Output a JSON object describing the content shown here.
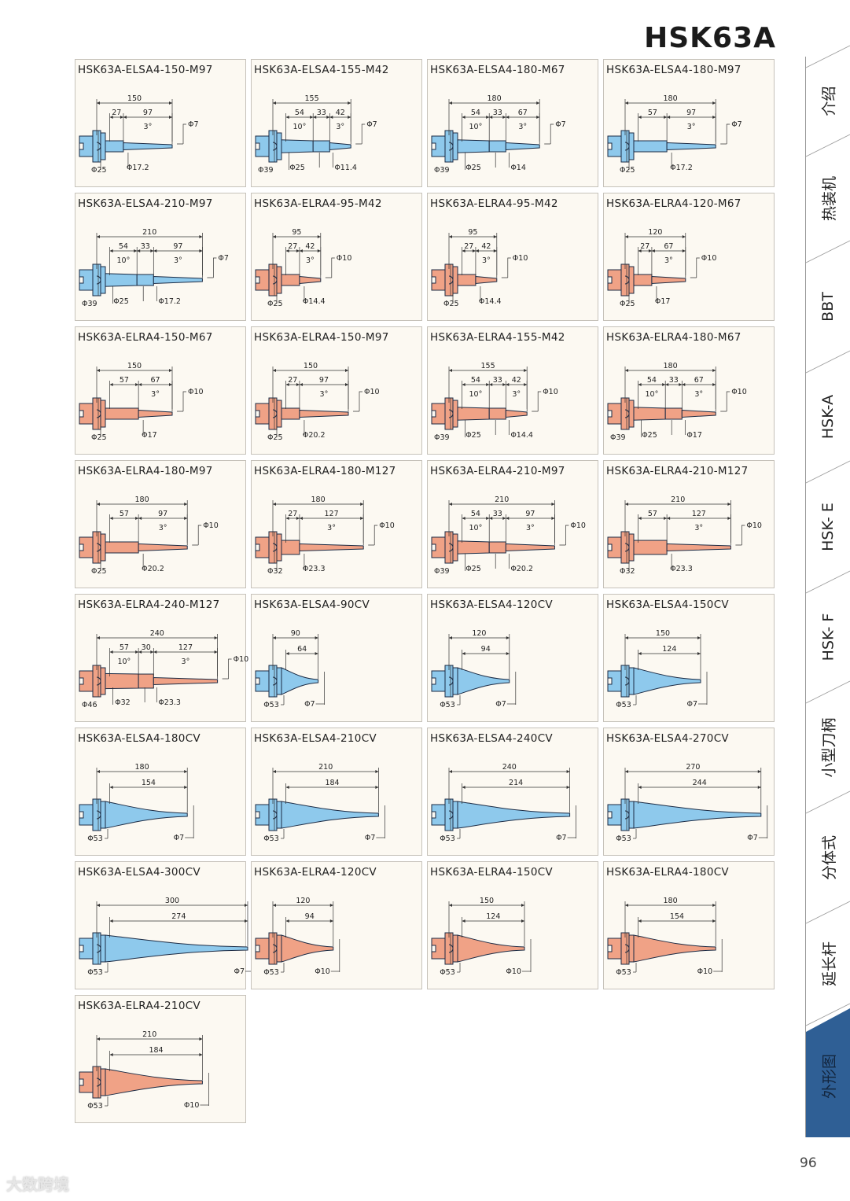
{
  "header": {
    "title": "HSK63A"
  },
  "colors": {
    "elsa": "#8ec9ec",
    "elra": "#f0a286",
    "outline": "#1c2b44",
    "card_bg": "#fcf9f2",
    "active_tab": "#2f5f95"
  },
  "sidebar": {
    "tabs": [
      {
        "label": "介绍"
      },
      {
        "label": "热装机"
      },
      {
        "label": "BBT"
      },
      {
        "label": "HSK-A"
      },
      {
        "label": "HSK- E"
      },
      {
        "label": "HSK- F"
      },
      {
        "label": "小型刀柄"
      },
      {
        "label": "分体式"
      },
      {
        "label": "延长杆"
      },
      {
        "label": "外形图",
        "active": true
      }
    ]
  },
  "page_number": "96",
  "watermark": "大数跨境",
  "cards": [
    {
      "title": "HSK63A-ELSA4-150-M97",
      "series": "elsa",
      "kind": "step",
      "total": "150",
      "segments": [
        "27",
        "97"
      ],
      "angles": [
        "3°"
      ],
      "tip": "Φ7",
      "diameters": [
        "Φ25",
        "Φ17.2"
      ]
    },
    {
      "title": "HSK63A-ELSA4-155-M42",
      "series": "elsa",
      "kind": "step",
      "total": "155",
      "segments": [
        "54",
        "33",
        "42"
      ],
      "angles": [
        "10°",
        "3°"
      ],
      "tip": "Φ7",
      "diameters": [
        "Φ39",
        "Φ25",
        "Φ11.4"
      ]
    },
    {
      "title": "HSK63A-ELSA4-180-M67",
      "series": "elsa",
      "kind": "step",
      "total": "180",
      "segments": [
        "54",
        "33",
        "67"
      ],
      "angles": [
        "10°",
        "3°"
      ],
      "tip": "Φ7",
      "diameters": [
        "Φ39",
        "Φ25",
        "Φ14"
      ]
    },
    {
      "title": "HSK63A-ELSA4-180-M97",
      "series": "elsa",
      "kind": "step",
      "total": "180",
      "segments": [
        "57",
        "97"
      ],
      "angles": [
        "3°"
      ],
      "tip": "Φ7",
      "diameters": [
        "Φ25",
        "Φ17.2"
      ]
    },
    {
      "title": "HSK63A-ELSA4-210-M97",
      "series": "elsa",
      "kind": "step",
      "total": "210",
      "segments": [
        "54",
        "33",
        "97"
      ],
      "angles": [
        "10°",
        "3°"
      ],
      "tip": "Φ7",
      "diameters": [
        "Φ39",
        "Φ25",
        "Φ17.2"
      ]
    },
    {
      "title": "HSK63A-ELRA4-95-M42",
      "series": "elra",
      "kind": "step",
      "total": "95",
      "segments": [
        "27",
        "42"
      ],
      "angles": [
        "3°"
      ],
      "tip": "Φ10",
      "diameters": [
        "Φ25",
        "Φ14.4"
      ]
    },
    {
      "title": "HSK63A-ELRA4-95-M42",
      "series": "elra",
      "kind": "step",
      "total": "95",
      "segments": [
        "27",
        "42"
      ],
      "angles": [
        "3°"
      ],
      "tip": "Φ10",
      "diameters": [
        "Φ25",
        "Φ14.4"
      ]
    },
    {
      "title": "HSK63A-ELRA4-120-M67",
      "series": "elra",
      "kind": "step",
      "total": "120",
      "segments": [
        "27",
        "67"
      ],
      "angles": [
        "3°"
      ],
      "tip": "Φ10",
      "diameters": [
        "Φ25",
        "Φ17"
      ]
    },
    {
      "title": "HSK63A-ELRA4-150-M67",
      "series": "elra",
      "kind": "step",
      "total": "150",
      "segments": [
        "57",
        "67"
      ],
      "angles": [
        "3°"
      ],
      "tip": "Φ10",
      "diameters": [
        "Φ25",
        "Φ17"
      ]
    },
    {
      "title": "HSK63A-ELRA4-150-M97",
      "series": "elra",
      "kind": "step",
      "total": "150",
      "segments": [
        "27",
        "97"
      ],
      "angles": [
        "3°"
      ],
      "tip": "Φ10",
      "diameters": [
        "Φ25",
        "Φ20.2"
      ]
    },
    {
      "title": "HSK63A-ELRA4-155-M42",
      "series": "elra",
      "kind": "step",
      "total": "155",
      "segments": [
        "54",
        "33",
        "42"
      ],
      "angles": [
        "10°",
        "3°"
      ],
      "tip": "Φ10",
      "diameters": [
        "Φ39",
        "Φ25",
        "Φ14.4"
      ]
    },
    {
      "title": "HSK63A-ELRA4-180-M67",
      "series": "elra",
      "kind": "step",
      "total": "180",
      "segments": [
        "54",
        "33",
        "67"
      ],
      "angles": [
        "10°",
        "3°"
      ],
      "tip": "Φ10",
      "diameters": [
        "Φ39",
        "Φ25",
        "Φ17"
      ]
    },
    {
      "title": "HSK63A-ELRA4-180-M97",
      "series": "elra",
      "kind": "step",
      "total": "180",
      "segments": [
        "57",
        "97"
      ],
      "angles": [
        "3°"
      ],
      "tip": "Φ10",
      "diameters": [
        "Φ25",
        "Φ20.2"
      ]
    },
    {
      "title": "HSK63A-ELRA4-180-M127",
      "series": "elra",
      "kind": "step",
      "total": "180",
      "segments": [
        "27",
        "127"
      ],
      "angles": [
        "3°"
      ],
      "tip": "Φ10",
      "diameters": [
        "Φ32",
        "Φ23.3"
      ]
    },
    {
      "title": "HSK63A-ELRA4-210-M97",
      "series": "elra",
      "kind": "step",
      "total": "210",
      "segments": [
        "54",
        "33",
        "97"
      ],
      "angles": [
        "10°",
        "3°"
      ],
      "tip": "Φ10",
      "diameters": [
        "Φ39",
        "Φ25",
        "Φ20.2"
      ]
    },
    {
      "title": "HSK63A-ELRA4-210-M127",
      "series": "elra",
      "kind": "step",
      "total": "210",
      "segments": [
        "57",
        "127"
      ],
      "angles": [
        "3°"
      ],
      "tip": "Φ10",
      "diameters": [
        "Φ32",
        "Φ23.3"
      ]
    },
    {
      "title": "HSK63A-ELRA4-240-M127",
      "series": "elra",
      "kind": "step",
      "total": "240",
      "segments": [
        "57",
        "30",
        "127"
      ],
      "angles": [
        "10°",
        "3°"
      ],
      "tip": "Φ10",
      "diameters": [
        "Φ46",
        "Φ32",
        "Φ23.3"
      ]
    },
    {
      "title": "HSK63A-ELSA4-90CV",
      "series": "elsa",
      "kind": "cv",
      "total": "90",
      "segments": [
        "64"
      ],
      "diameters": [
        "Φ53",
        "Φ7"
      ]
    },
    {
      "title": "HSK63A-ELSA4-120CV",
      "series": "elsa",
      "kind": "cv",
      "total": "120",
      "segments": [
        "94"
      ],
      "diameters": [
        "Φ53",
        "Φ7"
      ]
    },
    {
      "title": "HSK63A-ELSA4-150CV",
      "series": "elsa",
      "kind": "cv",
      "total": "150",
      "segments": [
        "124"
      ],
      "diameters": [
        "Φ53",
        "Φ7"
      ]
    },
    {
      "title": "HSK63A-ELSA4-180CV",
      "series": "elsa",
      "kind": "cv",
      "total": "180",
      "segments": [
        "154"
      ],
      "diameters": [
        "Φ53",
        "Φ7"
      ]
    },
    {
      "title": "HSK63A-ELSA4-210CV",
      "series": "elsa",
      "kind": "cv",
      "total": "210",
      "segments": [
        "184"
      ],
      "diameters": [
        "Φ53",
        "Φ7"
      ]
    },
    {
      "title": "HSK63A-ELSA4-240CV",
      "series": "elsa",
      "kind": "cv",
      "total": "240",
      "segments": [
        "214"
      ],
      "diameters": [
        "Φ53",
        "Φ7"
      ]
    },
    {
      "title": "HSK63A-ELSA4-270CV",
      "series": "elsa",
      "kind": "cv",
      "total": "270",
      "segments": [
        "244"
      ],
      "diameters": [
        "Φ53",
        "Φ7"
      ]
    },
    {
      "title": "HSK63A-ELSA4-300CV",
      "series": "elsa",
      "kind": "cv",
      "total": "300",
      "segments": [
        "274"
      ],
      "diameters": [
        "Φ53",
        "Φ7"
      ]
    },
    {
      "title": "HSK63A-ELRA4-120CV",
      "series": "elra",
      "kind": "cv",
      "total": "120",
      "segments": [
        "94"
      ],
      "diameters": [
        "Φ53",
        "Φ10"
      ]
    },
    {
      "title": "HSK63A-ELRA4-150CV",
      "series": "elra",
      "kind": "cv",
      "total": "150",
      "segments": [
        "124"
      ],
      "diameters": [
        "Φ53",
        "Φ10"
      ]
    },
    {
      "title": "HSK63A-ELRA4-180CV",
      "series": "elra",
      "kind": "cv",
      "total": "180",
      "segments": [
        "154"
      ],
      "diameters": [
        "Φ53",
        "Φ10"
      ]
    },
    {
      "title": "HSK63A-ELRA4-210CV",
      "series": "elra",
      "kind": "cv",
      "total": "210",
      "segments": [
        "184"
      ],
      "diameters": [
        "Φ53",
        "Φ10"
      ]
    }
  ]
}
